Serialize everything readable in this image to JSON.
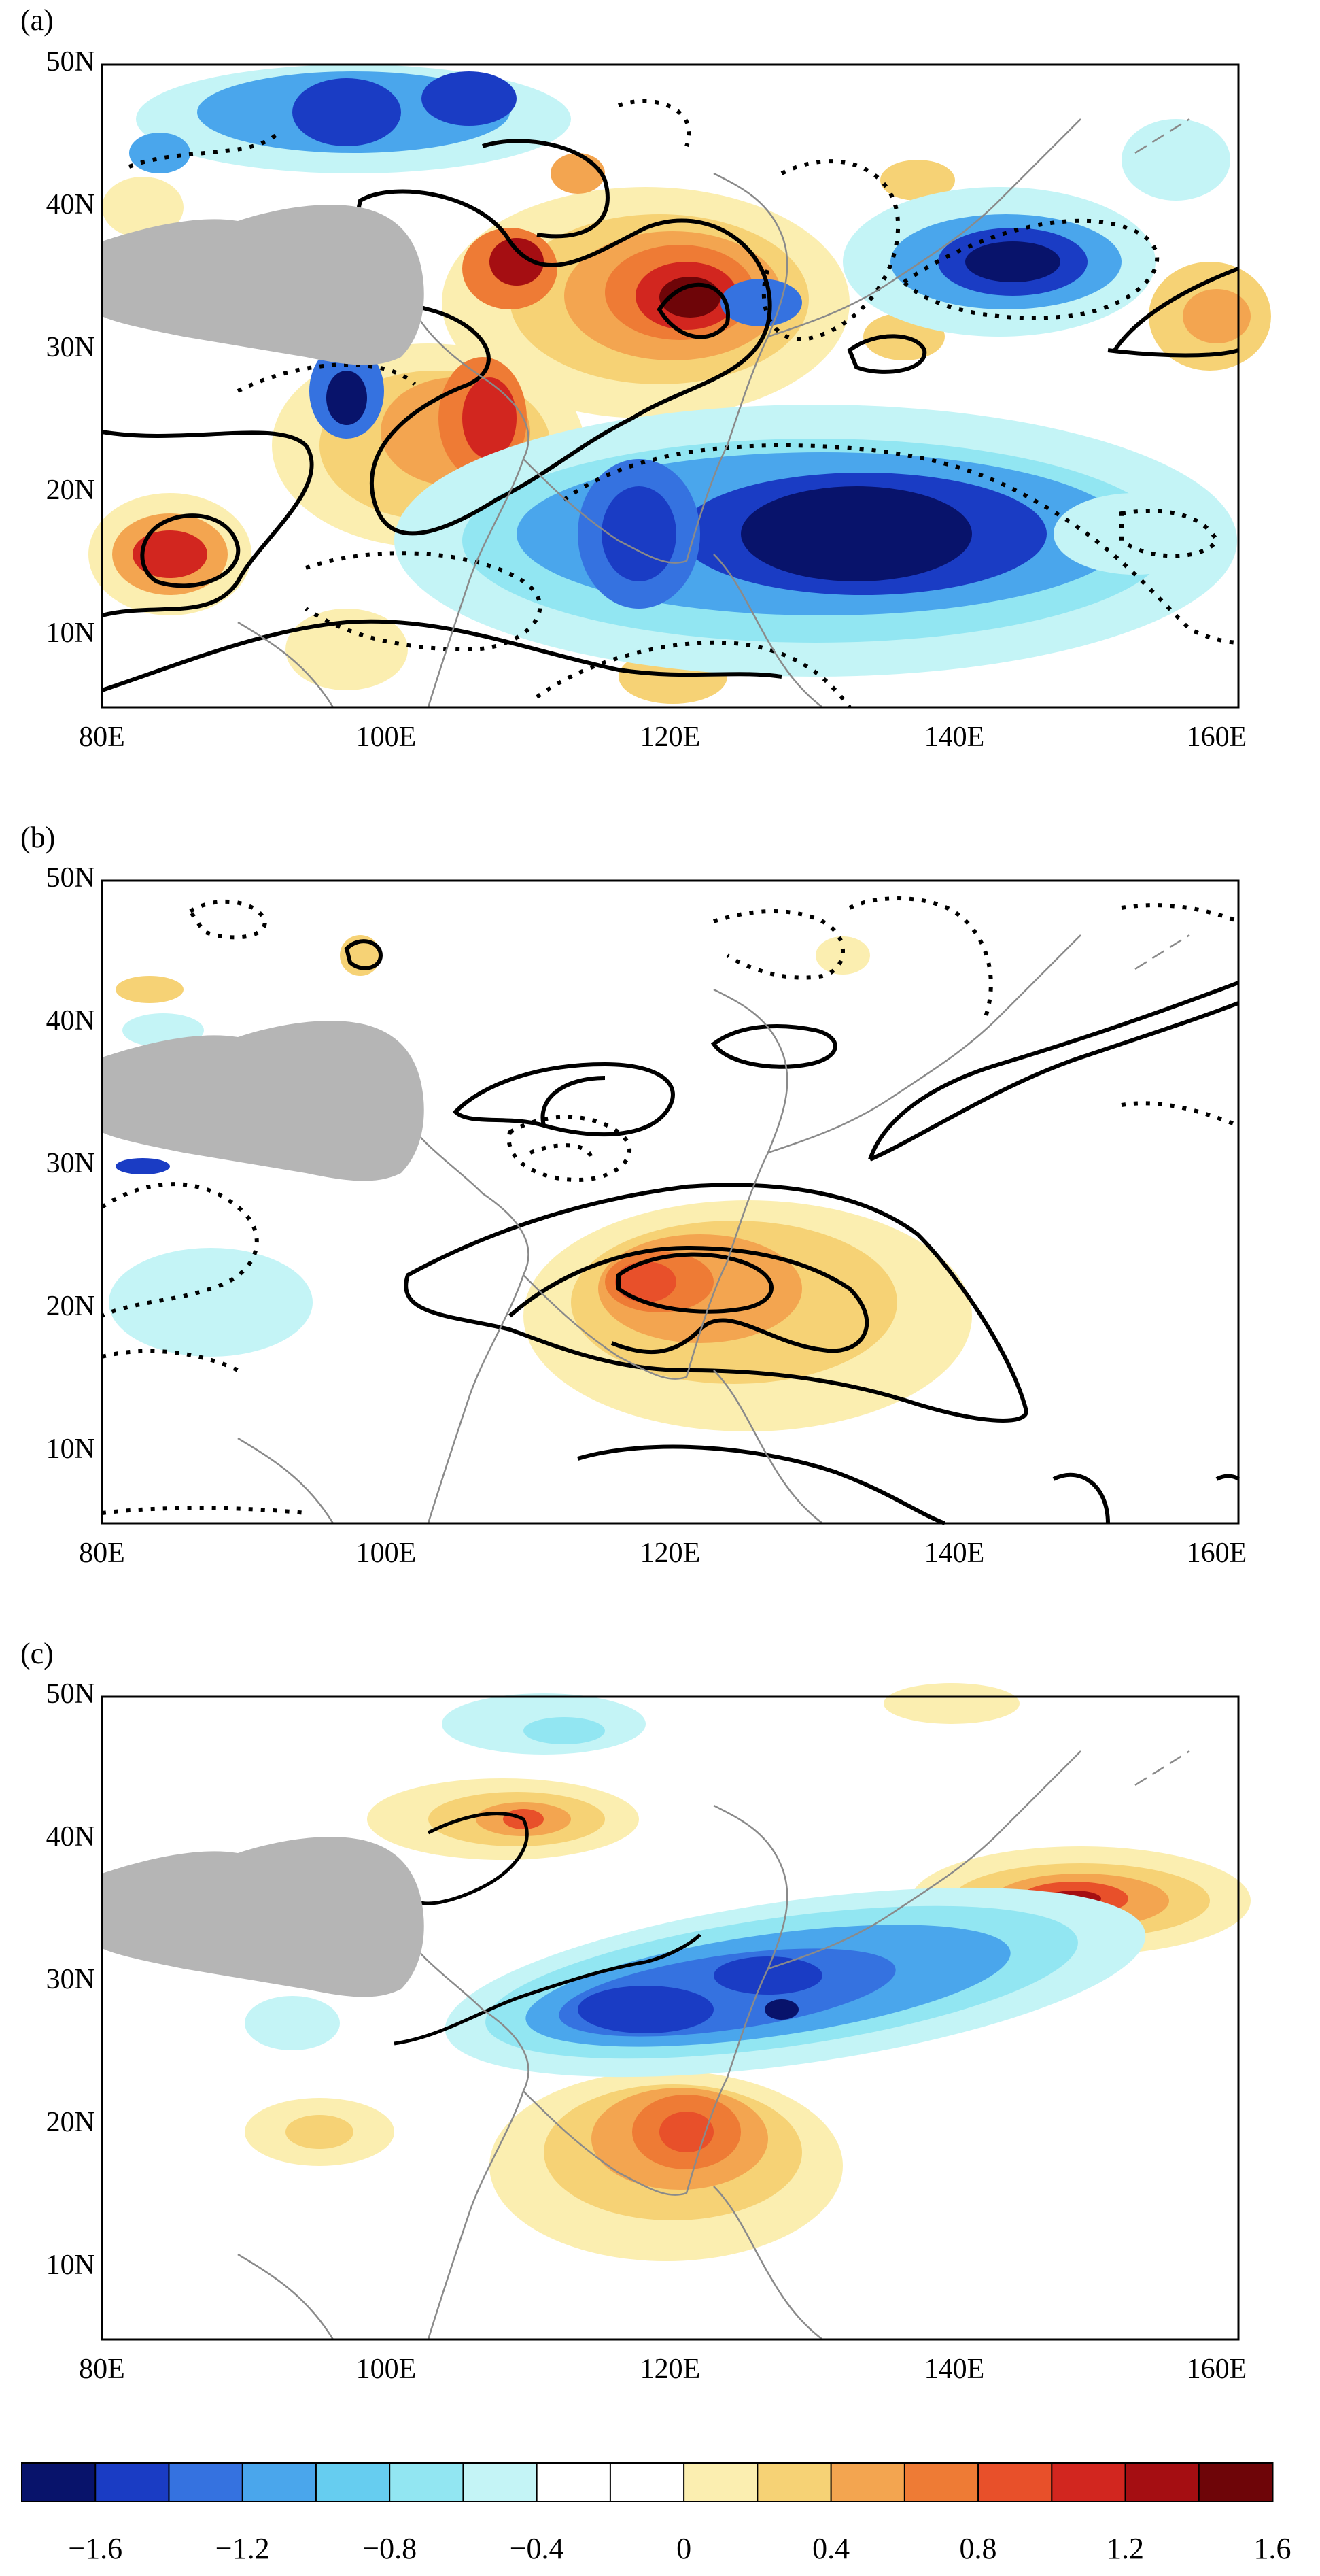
{
  "panels": [
    {
      "label": "(a)"
    },
    {
      "label": "(b)"
    },
    {
      "label": "(c)"
    }
  ],
  "lat_ticks": [
    "50N",
    "40N",
    "30N",
    "20N",
    "10N"
  ],
  "lon_ticks": [
    "80E",
    "100E",
    "120E",
    "140E",
    "160E"
  ],
  "colorbar": {
    "labels": [
      "−1.6",
      "−1.2",
      "−0.8",
      "−0.4",
      "0",
      "0.4",
      "0.8",
      "1.2",
      "1.6"
    ],
    "colors": [
      "#08136b",
      "#1a3cc4",
      "#3572e0",
      "#4aa6ec",
      "#66cdf0",
      "#92e6f2",
      "#c4f4f6",
      "#ffffff",
      "#ffffff",
      "#fbeeb0",
      "#f6d275",
      "#f3a550",
      "#ee7b35",
      "#e8502a",
      "#d2261f",
      "#a50e12",
      "#6e0508"
    ]
  },
  "colors": {
    "land_mask": "#b5b5b5",
    "coastline": "#8a8a8a",
    "contour": "#000000"
  }
}
